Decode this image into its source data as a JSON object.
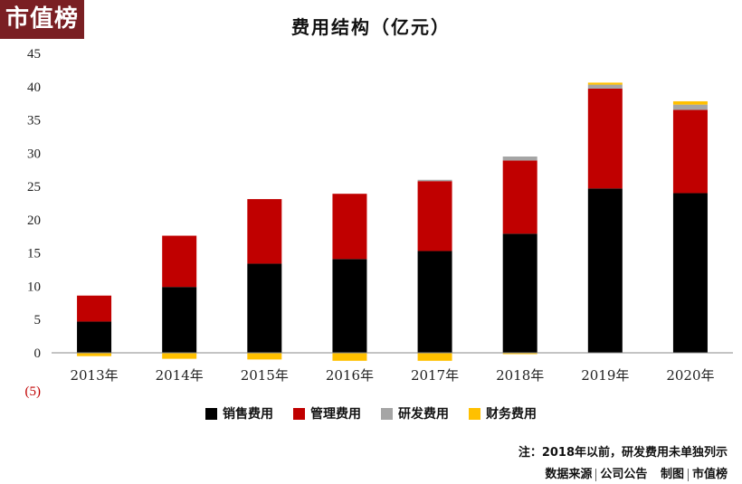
{
  "logo": "市值榜",
  "chart_data": {
    "type": "bar",
    "stacked": true,
    "title": "费用结构（亿元）",
    "categories": [
      "2013年",
      "2014年",
      "2015年",
      "2016年",
      "2017年",
      "2018年",
      "2019年",
      "2020年"
    ],
    "series": [
      {
        "name": "销售费用",
        "color": "#000000",
        "values": [
          4.7,
          9.9,
          13.4,
          14.1,
          15.3,
          17.9,
          24.7,
          24.0
        ]
      },
      {
        "name": "管理费用",
        "color": "#c00000",
        "values": [
          3.9,
          7.7,
          9.7,
          9.8,
          10.5,
          11.0,
          15.0,
          12.5
        ]
      },
      {
        "name": "研发费用",
        "color": "#a5a5a5",
        "values": [
          0,
          0,
          0,
          0,
          0.2,
          0.6,
          0.6,
          0.8
        ]
      },
      {
        "name": "财务费用",
        "color": "#ffc000",
        "values": [
          -0.5,
          -0.9,
          -1.0,
          -1.2,
          -1.2,
          -0.2,
          0.3,
          0.5
        ]
      }
    ],
    "yticks": [
      "45",
      "40",
      "35",
      "30",
      "25",
      "20",
      "15",
      "10",
      "5",
      "0",
      "(5)"
    ],
    "ylim": [
      -5,
      45
    ],
    "grid": false,
    "legend": "bottom"
  },
  "footnote": "注：2018年以前，研发费用未单独列示",
  "source": {
    "part1": "数据来源",
    "part2": "公司公告",
    "part3": "制图",
    "part4": "市值榜"
  }
}
